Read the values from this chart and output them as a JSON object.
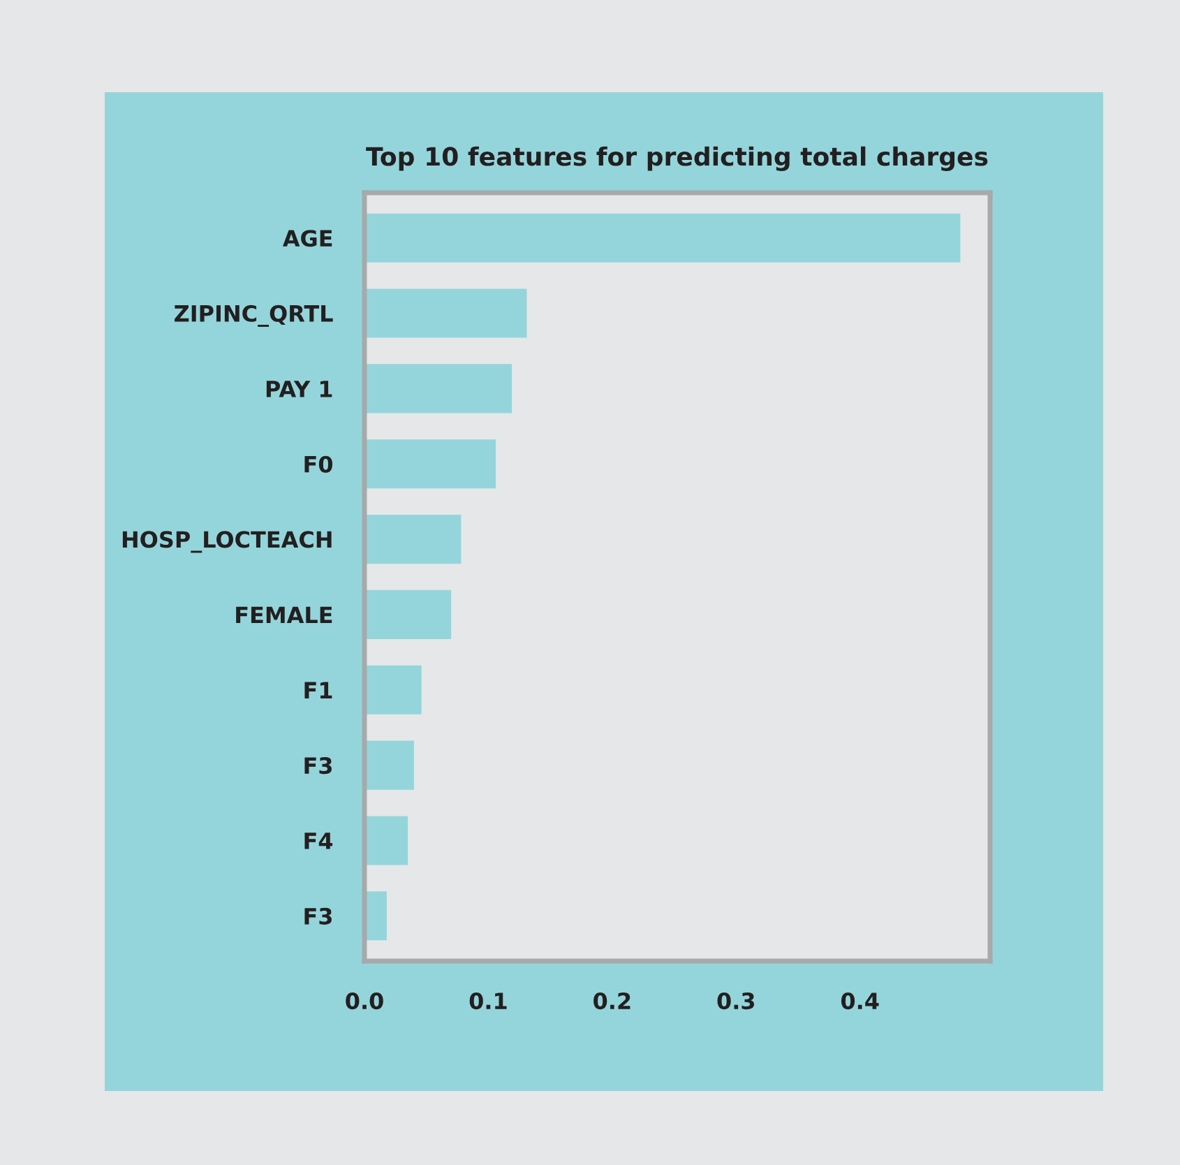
{
  "chart_data": {
    "type": "bar",
    "orientation": "horizontal",
    "title": "Top 10 features for predicting total charges",
    "categories": [
      "AGE",
      "ZIPINC_QRTL",
      "PAY 1",
      "F0",
      "HOSP_LOCTEACH",
      "FEMALE",
      "F1",
      "F3",
      "F4",
      "F3"
    ],
    "values": [
      0.481,
      0.131,
      0.119,
      0.106,
      0.078,
      0.07,
      0.046,
      0.04,
      0.035,
      0.018
    ],
    "color": "#94d5db",
    "xlim": [
      0,
      0.505
    ],
    "xticks": [
      {
        "value": 0,
        "label": "0.0"
      },
      0.1,
      0.2,
      0.3,
      0.4
    ],
    "grid": false,
    "legend": false
  }
}
